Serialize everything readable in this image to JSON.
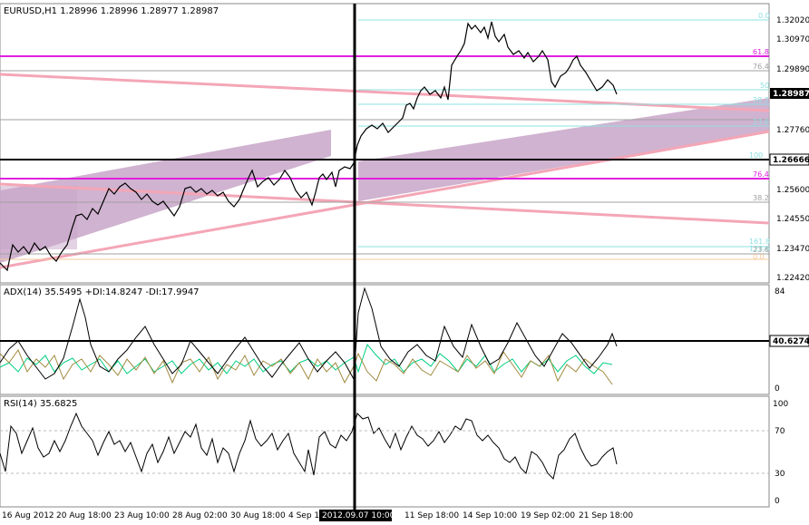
{
  "main": {
    "header": "EURUSD,H1  1.28996 1.28996 1.28977 1.28987",
    "price_ticks": [
      "1.32020",
      "1.30970",
      "1.29890",
      "1.27760",
      "1.26666",
      "1.25600",
      "1.24550",
      "1.23470",
      "1.22420"
    ],
    "current_price": "1.28987",
    "hline_price": "1.26666",
    "fib_right": [
      "0.0",
      "61.8",
      "76.4",
      "50",
      "38.2",
      "23.6",
      "100",
      "161.8",
      "123.6"
    ],
    "fib_left": [
      "76.4",
      "38.2",
      "23.6",
      "0.0"
    ]
  },
  "adx": {
    "header": "ADX(14) 35.5495 +DI:14.8247 -DI:17.9947",
    "ticks": [
      "84",
      "0"
    ],
    "level": "40.6274"
  },
  "rsi": {
    "header": "RSI(14) 35.6825",
    "ticks": [
      "100",
      "70",
      "30",
      "0"
    ]
  },
  "time_axis": {
    "labels": [
      "16 Aug 2012",
      "20 Aug 18:00",
      "23 Aug 10:00",
      "28 Aug 02:00",
      "30 Aug 18:00",
      "4 Sep 1",
      "11 Sep 18:00",
      "14 Sep 10:00",
      "19 Sep 02:00",
      "21 Sep 18:00"
    ],
    "cursor_label": "2012.09.07 10:00"
  },
  "colors": {
    "fan": "#c8a6c8",
    "pink": "#f4a6b6",
    "magenta": "#e020e0",
    "cyan": "#8fe0e0",
    "gray": "#a0a0a0",
    "plus_di": "#00d080",
    "minus_di": "#a08a40"
  }
}
